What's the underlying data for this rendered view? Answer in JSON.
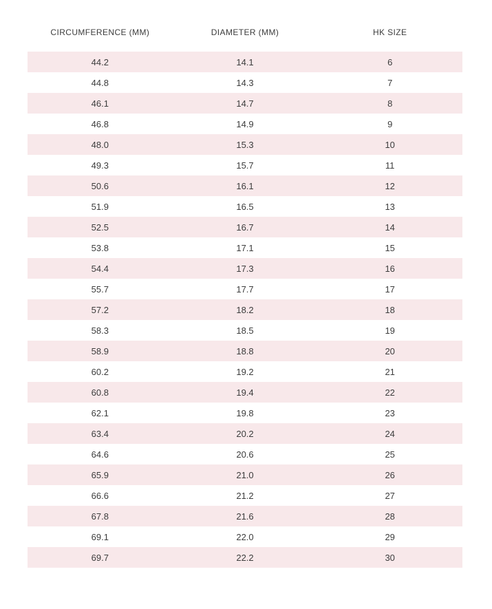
{
  "colors": {
    "stripe_pink": "#f8e8ea",
    "text": "#3c3c3c",
    "background": "#ffffff"
  },
  "chart_data": {
    "type": "table",
    "columns": [
      "CIRCUMFERENCE (MM)",
      "DIAMETER (MM)",
      "HK SIZE"
    ],
    "rows": [
      [
        "44.2",
        "14.1",
        "6"
      ],
      [
        "44.8",
        "14.3",
        "7"
      ],
      [
        "46.1",
        "14.7",
        "8"
      ],
      [
        "46.8",
        "14.9",
        "9"
      ],
      [
        "48.0",
        "15.3",
        "10"
      ],
      [
        "49.3",
        "15.7",
        "11"
      ],
      [
        "50.6",
        "16.1",
        "12"
      ],
      [
        "51.9",
        "16.5",
        "13"
      ],
      [
        "52.5",
        "16.7",
        "14"
      ],
      [
        "53.8",
        "17.1",
        "15"
      ],
      [
        "54.4",
        "17.3",
        "16"
      ],
      [
        "55.7",
        "17.7",
        "17"
      ],
      [
        "57.2",
        "18.2",
        "18"
      ],
      [
        "58.3",
        "18.5",
        "19"
      ],
      [
        "58.9",
        "18.8",
        "20"
      ],
      [
        "60.2",
        "19.2",
        "21"
      ],
      [
        "60.8",
        "19.4",
        "22"
      ],
      [
        "62.1",
        "19.8",
        "23"
      ],
      [
        "63.4",
        "20.2",
        "24"
      ],
      [
        "64.6",
        "20.6",
        "25"
      ],
      [
        "65.9",
        "21.0",
        "26"
      ],
      [
        "66.6",
        "21.2",
        "27"
      ],
      [
        "67.8",
        "21.6",
        "28"
      ],
      [
        "69.1",
        "22.0",
        "29"
      ],
      [
        "69.7",
        "22.2",
        "30"
      ]
    ],
    "layout": {
      "striped": true,
      "first_row_striped": true,
      "text_align": "center"
    }
  }
}
